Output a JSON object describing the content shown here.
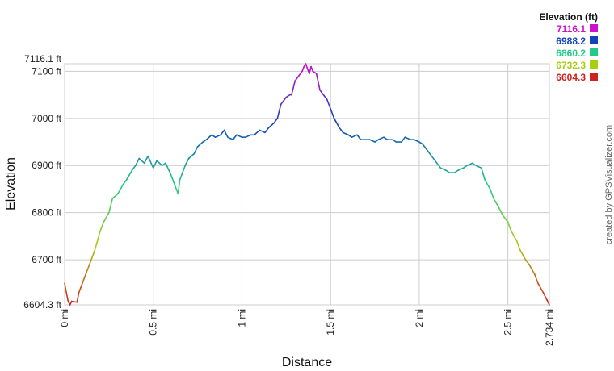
{
  "chart_data": {
    "type": "line",
    "title": "",
    "xlabel": "Distance",
    "ylabel": "Elevation",
    "xlim": [
      0,
      2.734
    ],
    "ylim": [
      6604.3,
      7116.1
    ],
    "grid": true,
    "x_ticks": [
      {
        "value": 0,
        "label": "0 mi"
      },
      {
        "value": 0.5,
        "label": "0.5 mi"
      },
      {
        "value": 1,
        "label": "1 mi"
      },
      {
        "value": 1.5,
        "label": "1.5 mi"
      },
      {
        "value": 2,
        "label": "2 mi"
      },
      {
        "value": 2.5,
        "label": "2.5 mi"
      },
      {
        "value": 2.734,
        "label": "2.734 mi"
      }
    ],
    "y_ticks": [
      {
        "value": 6604.3,
        "label": "6604.3 ft"
      },
      {
        "value": 6700,
        "label": "6700 ft"
      },
      {
        "value": 6800,
        "label": "6800 ft"
      },
      {
        "value": 6900,
        "label": "6900 ft"
      },
      {
        "value": 7000,
        "label": "7000 ft"
      },
      {
        "value": 7100,
        "label": "7100 ft"
      },
      {
        "value": 7116.1,
        "label": "7116.1 ft"
      }
    ],
    "legend": {
      "title": "Elevation (ft)",
      "placement": "top-right",
      "entries": [
        {
          "label": "7116.1",
          "color": "#cc11cc"
        },
        {
          "label": "6988.2",
          "color": "#1144bb"
        },
        {
          "label": "6860.2",
          "color": "#22cc88"
        },
        {
          "label": "6732.3",
          "color": "#aacc11"
        },
        {
          "label": "6604.3",
          "color": "#cc2222"
        }
      ]
    },
    "series": [
      {
        "x": [
          0,
          0.01,
          0.02,
          0.03,
          0.04,
          0.05,
          0.07,
          0.08,
          0.1,
          0.12,
          0.15,
          0.17,
          0.2,
          0.22,
          0.25,
          0.27,
          0.3,
          0.33,
          0.35,
          0.38,
          0.4,
          0.42,
          0.45,
          0.47,
          0.5,
          0.52,
          0.55,
          0.57,
          0.6,
          0.62,
          0.64,
          0.65,
          0.66,
          0.68,
          0.7,
          0.73,
          0.75,
          0.78,
          0.8,
          0.83,
          0.85,
          0.88,
          0.9,
          0.92,
          0.95,
          0.97,
          1.0,
          1.02,
          1.05,
          1.07,
          1.1,
          1.13,
          1.15,
          1.18,
          1.2,
          1.22,
          1.25,
          1.27,
          1.28,
          1.3,
          1.32,
          1.34,
          1.35,
          1.36,
          1.37,
          1.38,
          1.39,
          1.4,
          1.42,
          1.44,
          1.46,
          1.48,
          1.5,
          1.52,
          1.55,
          1.57,
          1.6,
          1.62,
          1.65,
          1.67,
          1.7,
          1.72,
          1.75,
          1.77,
          1.8,
          1.82,
          1.85,
          1.87,
          1.9,
          1.92,
          1.95,
          1.97,
          2.0,
          2.02,
          2.05,
          2.07,
          2.1,
          2.12,
          2.15,
          2.17,
          2.2,
          2.22,
          2.25,
          2.27,
          2.3,
          2.32,
          2.35,
          2.37,
          2.4,
          2.42,
          2.45,
          2.47,
          2.5,
          2.52,
          2.55,
          2.57,
          2.6,
          2.62,
          2.65,
          2.67,
          2.7,
          2.72,
          2.734
        ],
        "y": [
          6650,
          6630,
          6612,
          6604.3,
          6612,
          6611,
          6610,
          6630,
          6650,
          6670,
          6700,
          6720,
          6760,
          6780,
          6800,
          6830,
          6840,
          6860,
          6870,
          6890,
          6900,
          6915,
          6905,
          6920,
          6895,
          6910,
          6900,
          6905,
          6880,
          6860,
          6840,
          6870,
          6880,
          6900,
          6915,
          6925,
          6940,
          6950,
          6955,
          6965,
          6960,
          6965,
          6975,
          6960,
          6955,
          6965,
          6960,
          6960,
          6965,
          6965,
          6975,
          6970,
          6980,
          6990,
          7000,
          7030,
          7045,
          7050,
          7050,
          7080,
          7090,
          7100,
          7110,
          7116,
          7105,
          7095,
          7110,
          7100,
          7095,
          7060,
          7050,
          7040,
          7020,
          7000,
          6980,
          6970,
          6965,
          6960,
          6965,
          6955,
          6955,
          6955,
          6950,
          6955,
          6960,
          6955,
          6955,
          6950,
          6950,
          6960,
          6955,
          6955,
          6950,
          6945,
          6930,
          6920,
          6905,
          6895,
          6890,
          6885,
          6885,
          6890,
          6895,
          6900,
          6905,
          6900,
          6895,
          6870,
          6850,
          6830,
          6810,
          6795,
          6780,
          6760,
          6740,
          6720,
          6700,
          6690,
          6670,
          6650,
          6630,
          6615,
          6604.3
        ]
      }
    ],
    "credit": "created by GPSVisualizer.com"
  }
}
